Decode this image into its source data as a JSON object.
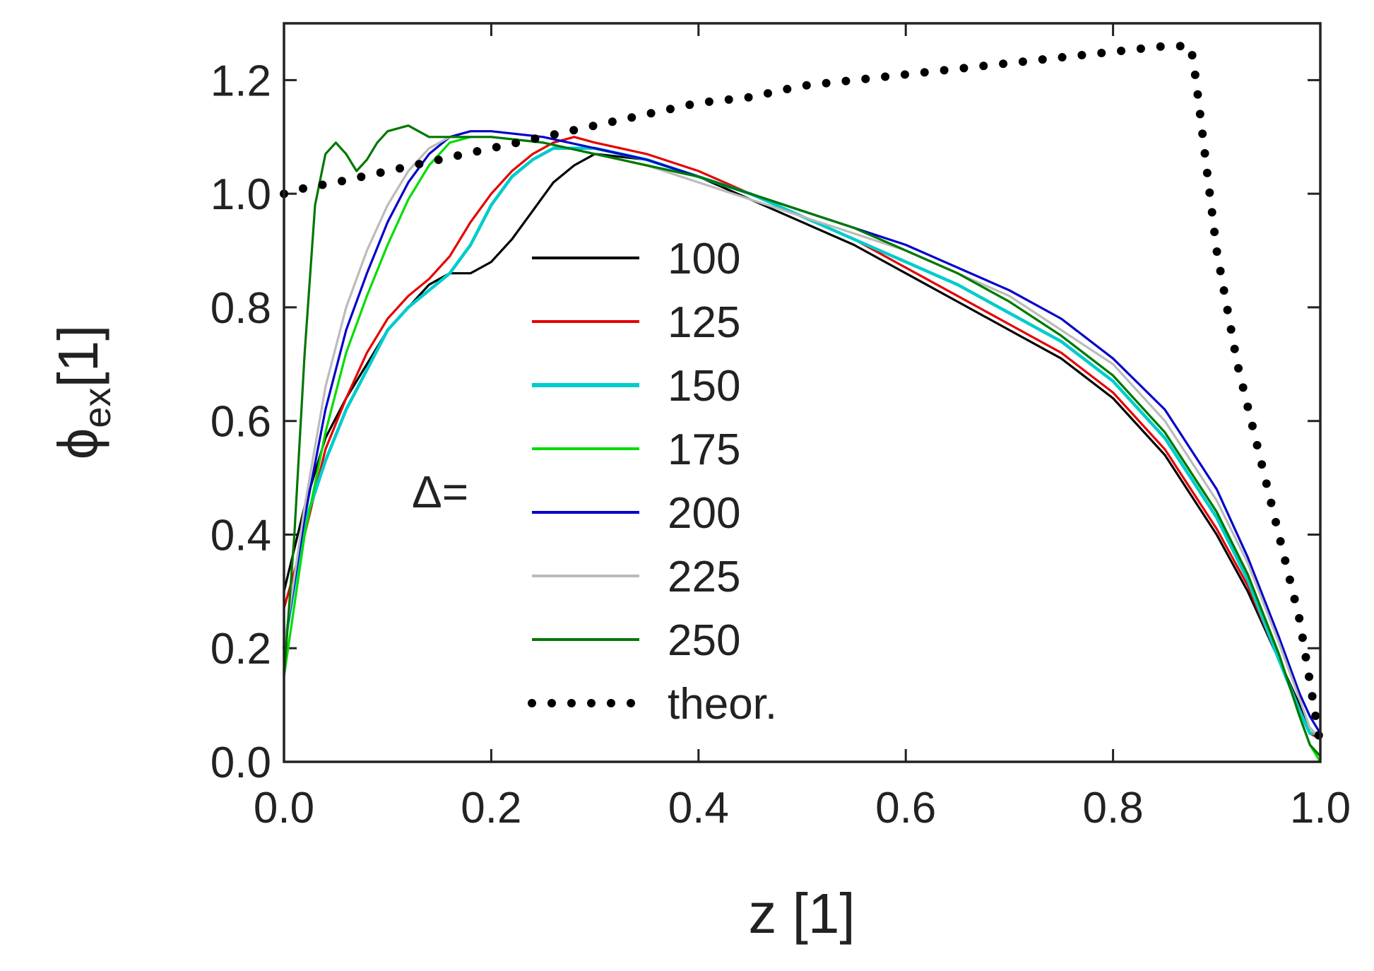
{
  "chart_data": {
    "type": "line",
    "title": "",
    "xlabel": "z [1]",
    "ylabel_symbol": "ϕ",
    "ylabel_subscript": "ex",
    "ylabel_unit": "[1]",
    "xlim": [
      0.0,
      1.0
    ],
    "ylim": [
      0.0,
      1.3
    ],
    "x_ticks": [
      "0.0",
      "0.2",
      "0.4",
      "0.6",
      "0.8",
      "1.0"
    ],
    "y_ticks": [
      "0.0",
      "0.2",
      "0.4",
      "0.6",
      "0.8",
      "1.0",
      "1.2"
    ],
    "legend_prefix": "Δ=",
    "legend_position": "center",
    "grid": false,
    "series": [
      {
        "name": "100",
        "color": "#000000",
        "x": [
          0.0,
          0.02,
          0.04,
          0.06,
          0.08,
          0.1,
          0.12,
          0.14,
          0.16,
          0.18,
          0.2,
          0.22,
          0.24,
          0.26,
          0.28,
          0.3,
          0.35,
          0.4,
          0.45,
          0.5,
          0.55,
          0.6,
          0.65,
          0.7,
          0.75,
          0.8,
          0.85,
          0.9,
          0.93,
          0.96,
          0.98,
          0.99,
          1.0
        ],
        "y": [
          0.3,
          0.45,
          0.57,
          0.64,
          0.7,
          0.76,
          0.8,
          0.84,
          0.86,
          0.86,
          0.88,
          0.92,
          0.97,
          1.02,
          1.05,
          1.07,
          1.06,
          1.03,
          0.99,
          0.95,
          0.91,
          0.86,
          0.81,
          0.76,
          0.71,
          0.64,
          0.54,
          0.4,
          0.3,
          0.18,
          0.1,
          0.06,
          0.04
        ]
      },
      {
        "name": "125",
        "color": "#e60000",
        "x": [
          0.0,
          0.02,
          0.04,
          0.06,
          0.08,
          0.1,
          0.12,
          0.14,
          0.16,
          0.18,
          0.2,
          0.22,
          0.24,
          0.26,
          0.28,
          0.3,
          0.35,
          0.4,
          0.45,
          0.5,
          0.55,
          0.6,
          0.65,
          0.7,
          0.75,
          0.8,
          0.85,
          0.9,
          0.93,
          0.96,
          0.98,
          0.99,
          1.0
        ],
        "y": [
          0.27,
          0.4,
          0.55,
          0.64,
          0.72,
          0.78,
          0.82,
          0.85,
          0.89,
          0.95,
          1.0,
          1.04,
          1.07,
          1.09,
          1.1,
          1.09,
          1.07,
          1.04,
          1.0,
          0.96,
          0.92,
          0.87,
          0.82,
          0.77,
          0.72,
          0.65,
          0.55,
          0.41,
          0.31,
          0.18,
          0.09,
          0.05,
          0.04
        ]
      },
      {
        "name": "150",
        "color": "#00cccc",
        "x": [
          0.0,
          0.02,
          0.04,
          0.06,
          0.08,
          0.1,
          0.12,
          0.14,
          0.16,
          0.18,
          0.2,
          0.22,
          0.24,
          0.26,
          0.28,
          0.3,
          0.35,
          0.4,
          0.45,
          0.5,
          0.55,
          0.6,
          0.65,
          0.7,
          0.75,
          0.8,
          0.85,
          0.9,
          0.93,
          0.96,
          0.98,
          0.99,
          1.0
        ],
        "y": [
          0.2,
          0.42,
          0.53,
          0.62,
          0.69,
          0.76,
          0.8,
          0.83,
          0.86,
          0.91,
          0.98,
          1.03,
          1.06,
          1.08,
          1.08,
          1.08,
          1.06,
          1.03,
          1.0,
          0.96,
          0.92,
          0.88,
          0.84,
          0.79,
          0.74,
          0.67,
          0.57,
          0.43,
          0.32,
          0.18,
          0.09,
          0.05,
          0.05
        ]
      },
      {
        "name": "175",
        "color": "#00dd00",
        "x": [
          0.0,
          0.02,
          0.04,
          0.06,
          0.08,
          0.1,
          0.12,
          0.14,
          0.16,
          0.18,
          0.2,
          0.25,
          0.3,
          0.35,
          0.4,
          0.45,
          0.5,
          0.55,
          0.6,
          0.65,
          0.7,
          0.75,
          0.8,
          0.85,
          0.9,
          0.93,
          0.96,
          0.98,
          0.99,
          1.0
        ],
        "y": [
          0.15,
          0.4,
          0.58,
          0.72,
          0.82,
          0.91,
          0.99,
          1.05,
          1.09,
          1.1,
          1.1,
          1.09,
          1.07,
          1.05,
          1.03,
          1.0,
          0.97,
          0.94,
          0.9,
          0.86,
          0.81,
          0.75,
          0.68,
          0.58,
          0.44,
          0.33,
          0.19,
          0.08,
          0.03,
          0.0
        ]
      },
      {
        "name": "200",
        "color": "#0000cc",
        "x": [
          0.0,
          0.02,
          0.04,
          0.06,
          0.08,
          0.1,
          0.12,
          0.14,
          0.16,
          0.18,
          0.2,
          0.25,
          0.3,
          0.35,
          0.4,
          0.45,
          0.5,
          0.55,
          0.6,
          0.65,
          0.7,
          0.75,
          0.8,
          0.85,
          0.9,
          0.93,
          0.96,
          0.98,
          0.99,
          1.0
        ],
        "y": [
          0.2,
          0.43,
          0.62,
          0.76,
          0.86,
          0.95,
          1.02,
          1.07,
          1.1,
          1.11,
          1.11,
          1.1,
          1.08,
          1.06,
          1.03,
          1.0,
          0.97,
          0.94,
          0.91,
          0.87,
          0.83,
          0.78,
          0.71,
          0.62,
          0.48,
          0.36,
          0.22,
          0.12,
          0.08,
          0.05
        ]
      },
      {
        "name": "225",
        "color": "#bbbbbb",
        "x": [
          0.0,
          0.02,
          0.04,
          0.06,
          0.08,
          0.1,
          0.12,
          0.14,
          0.16,
          0.18,
          0.2,
          0.25,
          0.3,
          0.35,
          0.4,
          0.45,
          0.5,
          0.55,
          0.6,
          0.65,
          0.7,
          0.75,
          0.8,
          0.85,
          0.9,
          0.93,
          0.96,
          0.98,
          0.99,
          1.0
        ],
        "y": [
          0.2,
          0.45,
          0.66,
          0.8,
          0.9,
          0.98,
          1.04,
          1.08,
          1.1,
          1.1,
          1.1,
          1.09,
          1.07,
          1.05,
          1.02,
          0.99,
          0.96,
          0.93,
          0.9,
          0.86,
          0.82,
          0.76,
          0.7,
          0.6,
          0.46,
          0.35,
          0.21,
          0.11,
          0.06,
          0.04
        ]
      },
      {
        "name": "250",
        "color": "#007700",
        "x": [
          0.0,
          0.01,
          0.02,
          0.03,
          0.04,
          0.05,
          0.06,
          0.07,
          0.08,
          0.09,
          0.1,
          0.12,
          0.14,
          0.16,
          0.18,
          0.2,
          0.25,
          0.3,
          0.35,
          0.4,
          0.45,
          0.5,
          0.55,
          0.6,
          0.65,
          0.7,
          0.75,
          0.8,
          0.85,
          0.9,
          0.93,
          0.96,
          0.98,
          0.99,
          1.0
        ],
        "y": [
          0.15,
          0.4,
          0.72,
          0.98,
          1.07,
          1.09,
          1.07,
          1.04,
          1.06,
          1.09,
          1.11,
          1.12,
          1.1,
          1.1,
          1.1,
          1.1,
          1.09,
          1.07,
          1.05,
          1.03,
          1.0,
          0.97,
          0.94,
          0.9,
          0.86,
          0.81,
          0.75,
          0.68,
          0.58,
          0.44,
          0.33,
          0.19,
          0.08,
          0.03,
          0.01
        ]
      }
    ],
    "theoretical": {
      "name": "theor.",
      "color": "#000000",
      "style": "dotted",
      "x": [
        0.0,
        0.02,
        0.05,
        0.1,
        0.15,
        0.2,
        0.25,
        0.3,
        0.35,
        0.4,
        0.45,
        0.5,
        0.55,
        0.6,
        0.65,
        0.7,
        0.75,
        0.8,
        0.85,
        0.875,
        0.88,
        0.89,
        0.9,
        0.92,
        0.94,
        0.96,
        0.98,
        1.0
      ],
      "y": [
        1.0,
        1.01,
        1.02,
        1.04,
        1.06,
        1.08,
        1.1,
        1.12,
        1.14,
        1.16,
        1.17,
        1.19,
        1.2,
        1.21,
        1.22,
        1.23,
        1.24,
        1.25,
        1.26,
        1.26,
        1.2,
        1.05,
        0.9,
        0.7,
        0.55,
        0.4,
        0.25,
        0.03
      ]
    }
  }
}
